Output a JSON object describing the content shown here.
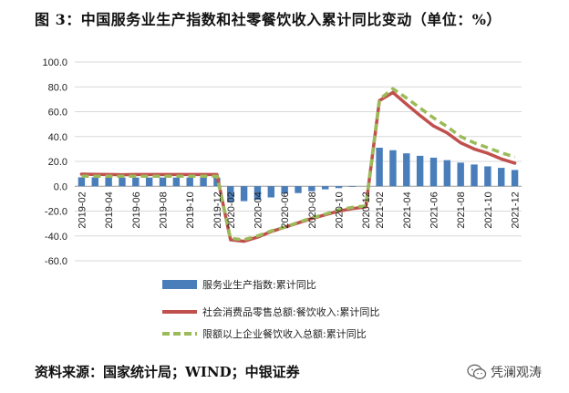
{
  "title": "图 3：中国服务业生产指数和社零餐饮收入累计同比变动（单位：%）",
  "source": "资料来源：国家统计局；WIND；中银证券",
  "watermark": {
    "text": "凭澜观涛",
    "icon": "wechat-icon"
  },
  "chart_data": {
    "type": "bar",
    "title": "",
    "xlabel": "",
    "ylabel": "",
    "ylim": [
      -60,
      100
    ],
    "yticks": [
      "100.0",
      "80.0",
      "60.0",
      "40.0",
      "20.0",
      "0.0",
      "-20.0",
      "-40.0",
      "-60.0"
    ],
    "grid": true,
    "legend_placement": "bottom",
    "x_tick_labels": [
      "2019-02",
      "2019-04",
      "2019-06",
      "2019-08",
      "2019-10",
      "2019-12",
      "2020-02",
      "2020-04",
      "2020-06",
      "2020-08",
      "2020-10",
      "2020-12",
      "2021-02",
      "2021-04",
      "2021-06",
      "2021-08",
      "2021-10",
      "2021-12"
    ],
    "x": [
      "2019-02",
      "2019-03",
      "2019-04",
      "2019-05",
      "2019-06",
      "2019-07",
      "2019-08",
      "2019-09",
      "2019-10",
      "2019-11",
      "2019-12",
      "2020-02",
      "2020-03",
      "2020-04",
      "2020-05",
      "2020-06",
      "2020-07",
      "2020-08",
      "2020-09",
      "2020-10",
      "2020-11",
      "2020-12",
      "2021-02",
      "2021-03",
      "2021-04",
      "2021-05",
      "2021-06",
      "2021-07",
      "2021-08",
      "2021-09",
      "2021-10",
      "2021-11",
      "2021-12"
    ],
    "series": [
      {
        "name": "服务业生产指数:累计同比",
        "kind": "bar",
        "color": "#4a7ebb",
        "values": [
          7.2,
          7.2,
          7.0,
          7.0,
          7.0,
          7.0,
          7.0,
          7.0,
          7.0,
          6.9,
          6.9,
          -13.0,
          -12.0,
          -11.0,
          -9.0,
          -6.0,
          -5.5,
          -4.0,
          -2.5,
          -1.5,
          -0.5,
          0.0,
          31.0,
          29.0,
          26.5,
          24.5,
          23.0,
          21.0,
          19.0,
          17.5,
          16.0,
          14.8,
          13.1
        ]
      },
      {
        "name": "社会消费品零售总额:餐饮收入:累计同比",
        "kind": "line",
        "color": "#c0504d",
        "values": [
          9.7,
          9.5,
          9.4,
          9.3,
          9.4,
          9.4,
          9.4,
          9.4,
          9.4,
          9.4,
          9.4,
          -43.1,
          -44.3,
          -41.0,
          -36.5,
          -33.0,
          -29.5,
          -26.0,
          -23.0,
          -20.0,
          -18.0,
          -16.6,
          68.9,
          75.5,
          66.0,
          57.0,
          48.5,
          43.0,
          35.0,
          30.0,
          26.5,
          22.0,
          18.6
        ]
      },
      {
        "name": "限额以上企业餐饮收入总额:累计同比",
        "kind": "line-dashed",
        "color": "#9bbb59",
        "values": [
          8.0,
          8.0,
          8.0,
          8.0,
          8.0,
          8.0,
          8.0,
          8.0,
          8.0,
          8.0,
          8.0,
          -42.0,
          -43.0,
          -40.0,
          -36.0,
          -33.0,
          -29.0,
          -25.5,
          -22.5,
          -19.0,
          -17.0,
          -15.8,
          70.0,
          78.5,
          71.0,
          63.0,
          55.0,
          48.0,
          40.0,
          35.0,
          31.0,
          27.0,
          23.5
        ]
      }
    ]
  }
}
